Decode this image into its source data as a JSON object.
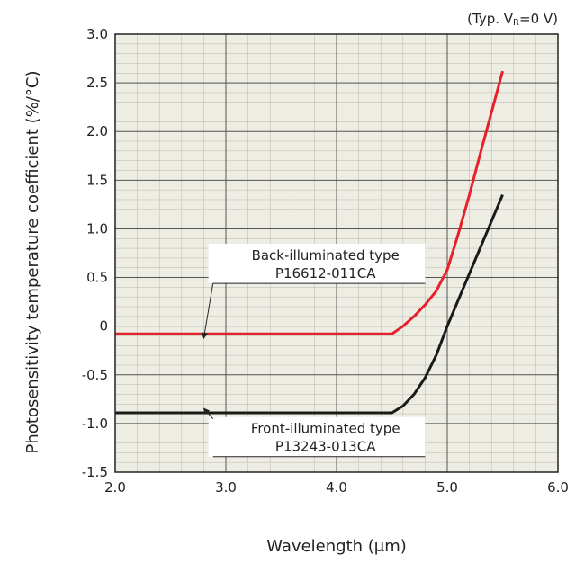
{
  "chart_data": {
    "type": "line",
    "title": "",
    "condition": {
      "prefix": "(Typ. V",
      "subscript": "R",
      "suffix": "=0 V)"
    },
    "xlabel": "Wavelength (μm)",
    "ylabel": "Photosensitivity temperature coefficient (%/°C)",
    "xlim": [
      2.0,
      6.0
    ],
    "ylim": [
      -1.5,
      3.0
    ],
    "x_ticks": [
      {
        "value": 2.0,
        "label": "2.0"
      },
      {
        "value": 3.0,
        "label": "3.0"
      },
      {
        "value": 4.0,
        "label": "4.0"
      },
      {
        "value": 5.0,
        "label": "5.0"
      },
      {
        "value": 6.0,
        "label": "6.0"
      }
    ],
    "y_ticks": [
      {
        "value": 3.0,
        "label": "3.0"
      },
      {
        "value": 2.5,
        "label": "2.5"
      },
      {
        "value": 2.0,
        "label": "2.0"
      },
      {
        "value": 1.5,
        "label": "1.5"
      },
      {
        "value": 1.0,
        "label": "1.0"
      },
      {
        "value": 0.5,
        "label": "0.5"
      },
      {
        "value": 0.0,
        "label": "0"
      },
      {
        "value": -0.5,
        "label": "-0.5"
      },
      {
        "value": -1.0,
        "label": "-1.0"
      },
      {
        "value": -1.5,
        "label": "-1.5"
      }
    ],
    "grid": true,
    "minor_grid_step_x": 0.2,
    "minor_grid_step_y": 0.1,
    "background_color": "#eeede4",
    "grid_color": "#555555",
    "series": [
      {
        "label_lines": [
          "Back-illuminated type",
          "P16612-011CA"
        ],
        "color": "#e8202a",
        "x": [
          2.0,
          2.5,
          3.0,
          3.5,
          4.0,
          4.5,
          4.6,
          4.7,
          4.8,
          4.9,
          5.0,
          5.1,
          5.2,
          5.3,
          5.4,
          5.5
        ],
        "y": [
          -0.08,
          -0.08,
          -0.08,
          -0.08,
          -0.08,
          -0.08,
          0.0,
          0.1,
          0.22,
          0.36,
          0.58,
          0.95,
          1.35,
          1.78,
          2.2,
          2.62
        ]
      },
      {
        "label_lines": [
          "Front-illuminated type",
          "P13243-013CA"
        ],
        "color": "#1a1a1a",
        "x": [
          2.0,
          2.5,
          3.0,
          3.5,
          4.0,
          4.5,
          4.6,
          4.7,
          4.8,
          4.9,
          5.0,
          5.1,
          5.2,
          5.3,
          5.4,
          5.5
        ],
        "y": [
          -0.89,
          -0.89,
          -0.89,
          -0.89,
          -0.89,
          -0.89,
          -0.82,
          -0.7,
          -0.53,
          -0.3,
          0.0,
          0.27,
          0.54,
          0.81,
          1.08,
          1.35
        ]
      }
    ],
    "annotations": [
      {
        "series": 0,
        "arrow_to": [
          2.8,
          -0.08
        ],
        "text_at": [
          3.9,
          0.68
        ],
        "leader_to": 4.8
      },
      {
        "series": 1,
        "arrow_to": [
          2.8,
          -0.89
        ],
        "text_at": [
          3.9,
          -1.1
        ],
        "leader_to": 4.8
      }
    ]
  }
}
